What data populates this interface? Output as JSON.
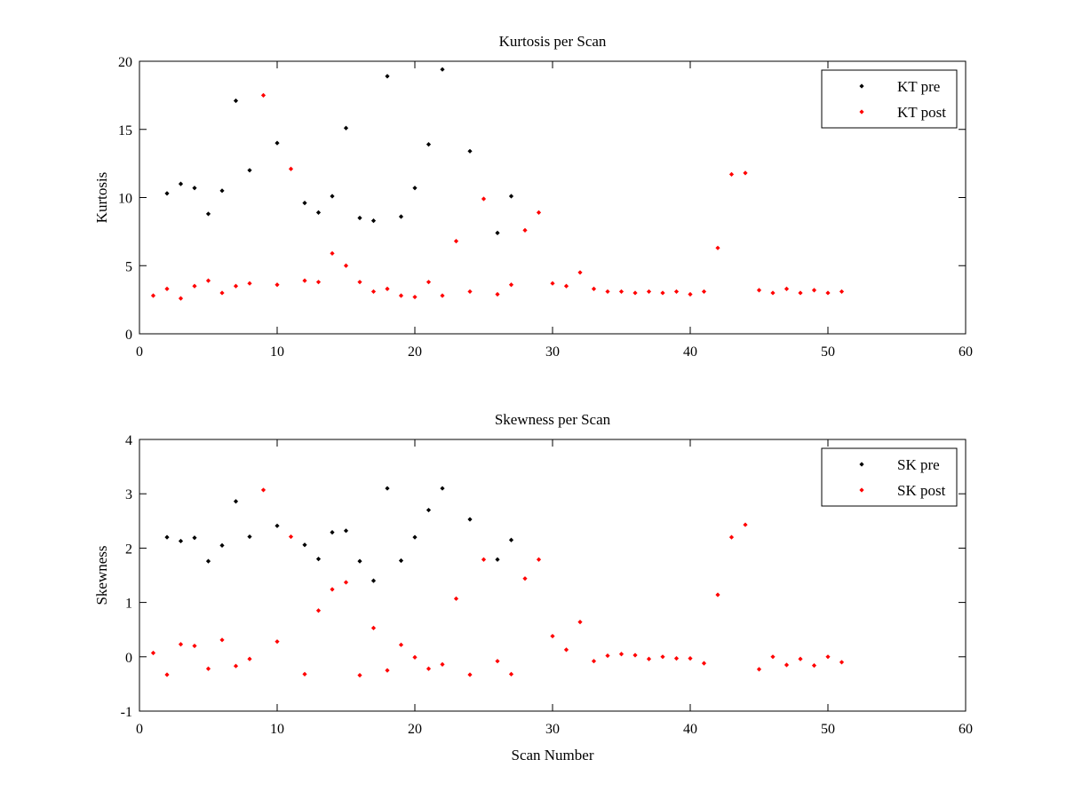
{
  "chart_data": [
    {
      "type": "scatter",
      "title": "Kurtosis per Scan",
      "xlabel": "",
      "ylabel": "Kurtosis",
      "xlim": [
        0,
        60
      ],
      "ylim": [
        0,
        20
      ],
      "xticks": [
        0,
        10,
        20,
        30,
        40,
        50,
        60
      ],
      "yticks": [
        0,
        5,
        10,
        15,
        20
      ],
      "grid": false,
      "legend": "top-right",
      "series": [
        {
          "name": "KT pre",
          "color": "#000000",
          "x": [
            2,
            3,
            4,
            5,
            6,
            7,
            8,
            10,
            12,
            13,
            14,
            15,
            16,
            17,
            18,
            19,
            20,
            21,
            22,
            24,
            26,
            27
          ],
          "y": [
            10.3,
            11.0,
            10.7,
            8.8,
            10.5,
            17.1,
            12.0,
            14.0,
            9.6,
            8.9,
            10.1,
            15.1,
            8.5,
            8.3,
            18.9,
            8.6,
            10.7,
            13.9,
            19.4,
            13.4,
            7.4,
            10.1
          ]
        },
        {
          "name": "KT post",
          "color": "#ff0000",
          "x": [
            1,
            2,
            3,
            4,
            5,
            6,
            7,
            8,
            9,
            10,
            11,
            12,
            13,
            14,
            15,
            16,
            17,
            18,
            19,
            20,
            21,
            22,
            23,
            24,
            25,
            26,
            27,
            28,
            29,
            30,
            31,
            32,
            33,
            34,
            35,
            36,
            37,
            38,
            39,
            40,
            41,
            42,
            43,
            44,
            45,
            46,
            47,
            48,
            49,
            50,
            51
          ],
          "y": [
            2.8,
            3.3,
            2.6,
            3.5,
            3.9,
            3.0,
            3.5,
            3.7,
            17.5,
            3.6,
            12.1,
            3.9,
            3.8,
            5.9,
            5.0,
            3.8,
            3.1,
            3.3,
            2.8,
            2.7,
            3.8,
            2.8,
            6.8,
            3.1,
            9.9,
            2.9,
            3.6,
            7.6,
            8.9,
            3.7,
            3.5,
            4.5,
            3.3,
            3.1,
            3.1,
            3.0,
            3.1,
            3.0,
            3.1,
            2.9,
            3.1,
            6.3,
            11.7,
            11.8,
            3.2,
            3.0,
            3.3,
            3.0,
            3.2,
            3.0,
            3.1
          ]
        }
      ]
    },
    {
      "type": "scatter",
      "title": "Skewness per Scan",
      "xlabel": "Scan Number",
      "ylabel": "Skewness",
      "xlim": [
        0,
        60
      ],
      "ylim": [
        -1,
        4
      ],
      "xticks": [
        0,
        10,
        20,
        30,
        40,
        50,
        60
      ],
      "yticks": [
        -1,
        0,
        1,
        2,
        3,
        4
      ],
      "grid": false,
      "legend": "top-right",
      "series": [
        {
          "name": "SK pre",
          "color": "#000000",
          "x": [
            2,
            3,
            4,
            5,
            6,
            7,
            8,
            10,
            12,
            13,
            14,
            15,
            16,
            17,
            18,
            19,
            20,
            21,
            22,
            24,
            26,
            27
          ],
          "y": [
            2.2,
            2.13,
            2.19,
            1.76,
            2.05,
            2.86,
            2.21,
            2.41,
            2.06,
            1.8,
            2.29,
            2.32,
            1.76,
            1.4,
            3.1,
            1.77,
            2.2,
            2.7,
            3.1,
            2.53,
            1.79,
            2.15
          ]
        },
        {
          "name": "SK post",
          "color": "#ff0000",
          "x": [
            1,
            2,
            3,
            4,
            5,
            6,
            7,
            8,
            9,
            10,
            11,
            12,
            13,
            14,
            15,
            16,
            17,
            18,
            19,
            20,
            21,
            22,
            23,
            24,
            25,
            26,
            27,
            28,
            29,
            30,
            31,
            32,
            33,
            34,
            35,
            36,
            37,
            38,
            39,
            40,
            41,
            42,
            43,
            44,
            45,
            46,
            47,
            48,
            49,
            50,
            51
          ],
          "y": [
            0.07,
            -0.33,
            0.23,
            0.2,
            -0.22,
            0.31,
            -0.17,
            -0.04,
            3.07,
            0.28,
            2.21,
            -0.32,
            0.85,
            1.24,
            1.37,
            -0.34,
            0.53,
            -0.25,
            0.22,
            -0.01,
            -0.22,
            -0.14,
            1.07,
            -0.33,
            1.79,
            -0.08,
            -0.32,
            1.44,
            1.79,
            0.38,
            0.13,
            0.64,
            -0.08,
            0.02,
            0.05,
            0.03,
            -0.04,
            0.0,
            -0.03,
            -0.03,
            -0.12,
            1.14,
            2.2,
            2.43,
            -0.23,
            0.0,
            -0.15,
            -0.04,
            -0.16,
            0.0,
            -0.1
          ]
        }
      ]
    }
  ]
}
